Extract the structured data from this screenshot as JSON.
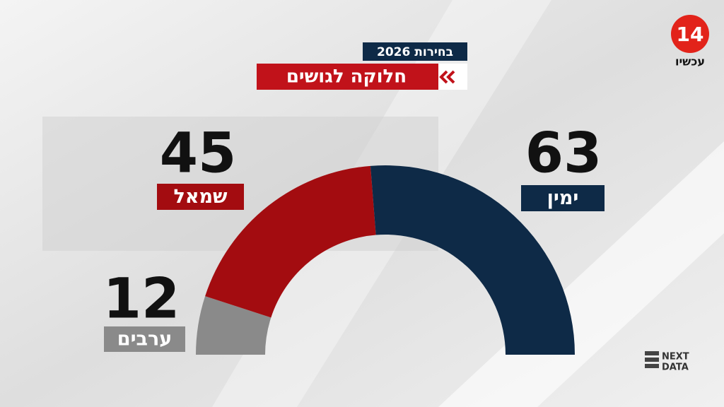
{
  "chart_data": {
    "type": "pie",
    "half": true,
    "title": "חלוקה לגושים",
    "subtitle": "בחירות 2026",
    "categories": [
      "ערבים",
      "שמאל",
      "ימין"
    ],
    "values": [
      12,
      45,
      63
    ],
    "colors": [
      "#8a8a8a",
      "#a30c10",
      "#0e2a47"
    ]
  },
  "logo": {
    "number": "14",
    "text": "עכשיו"
  },
  "watermark": [
    "NEXT",
    "DATA"
  ]
}
